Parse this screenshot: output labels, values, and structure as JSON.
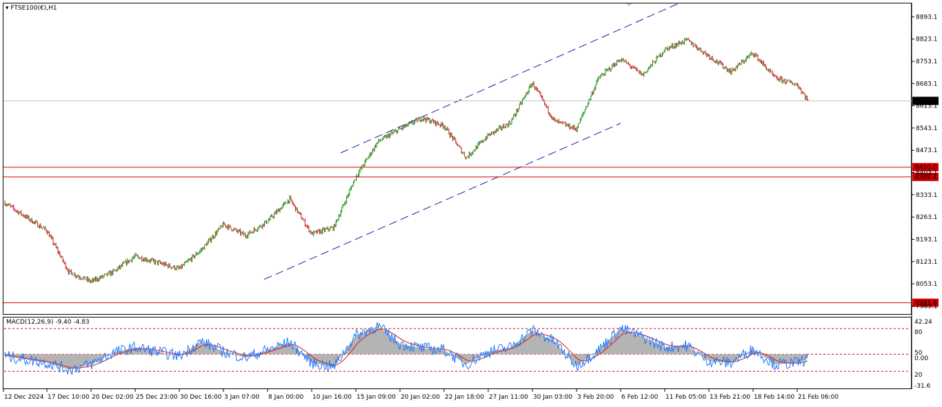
{
  "header": {
    "symbol_title": "FTSE100(€),H1",
    "indicator_title": "MACD(12,26,9) -9.40 -4.83"
  },
  "chart_data": [
    {
      "type": "candlestick",
      "title": "FTSE100(€),H1",
      "ylim": [
        7958,
        8935
      ],
      "price_ticks": [
        "8893.1",
        "8823.1",
        "8753.1",
        "8683.1",
        "8613.1",
        "8543.1",
        "8473.1",
        "8403.1",
        "8333.1",
        "8263.1",
        "8193.1",
        "8123.1",
        "8053.1",
        "7983.1"
      ],
      "time_labels": [
        "12 Dec 2024",
        "17 Dec 10:00",
        "20 Dec 02:00",
        "25 Dec 23:00",
        "30 Dec 16:00",
        "3 Jan 07:00",
        "8 Jan 00:00",
        "10 Jan 16:00",
        "15 Jan 09:00",
        "20 Jan 02:00",
        "22 Jan 18:00",
        "27 Jan 11:00",
        "30 Jan 03:00",
        "3 Feb 20:00",
        "6 Feb 12:00",
        "11 Feb 05:00",
        "13 Feb 21:00",
        "18 Feb 14:00",
        "21 Feb 06:00"
      ],
      "current_price": "8628.4",
      "horizontal_levels": [
        "8420.0",
        "8389.4",
        "7993.6"
      ],
      "level_color": "#d40000",
      "bull_color": "#0a8a0a",
      "bear_color": "#c81414",
      "channel_color": "#1a1aa8",
      "channel_lines": [
        {
          "x_start": "15 Jan 09:00",
          "x_end": "11 Feb 05:00",
          "price_start": 8465,
          "price_end": 8935
        },
        {
          "x_start": "8 Jan 00:00",
          "x_end": "6 Feb 12:00",
          "price_start": 8067,
          "price_end": 8558
        }
      ],
      "close_path": [
        {
          "x": "12 Dec 2024",
          "price": 8310
        },
        {
          "x": "17 Dec 10:00",
          "price": 8220
        },
        {
          "x": "17 Dec 10:00",
          "price": 8090
        },
        {
          "x": "20 Dec 02:00",
          "price": 8060
        },
        {
          "x": "20 Dec 02:00",
          "price": 8090
        },
        {
          "x": "25 Dec 23:00",
          "price": 8140
        },
        {
          "x": "30 Dec 16:00",
          "price": 8100
        },
        {
          "x": "30 Dec 16:00",
          "price": 8160
        },
        {
          "x": "3 Jan 07:00",
          "price": 8240
        },
        {
          "x": "3 Jan 07:00",
          "price": 8205
        },
        {
          "x": "8 Jan 00:00",
          "price": 8250
        },
        {
          "x": "8 Jan 00:00",
          "price": 8320
        },
        {
          "x": "10 Jan 16:00",
          "price": 8210
        },
        {
          "x": "10 Jan 16:00",
          "price": 8230
        },
        {
          "x": "15 Jan 09:00",
          "price": 8390
        },
        {
          "x": "15 Jan 09:00",
          "price": 8500
        },
        {
          "x": "20 Jan 02:00",
          "price": 8540
        },
        {
          "x": "20 Jan 02:00",
          "price": 8575
        },
        {
          "x": "22 Jan 18:00",
          "price": 8550
        },
        {
          "x": "22 Jan 18:00",
          "price": 8450
        },
        {
          "x": "27 Jan 11:00",
          "price": 8520
        },
        {
          "x": "27 Jan 11:00",
          "price": 8560
        },
        {
          "x": "30 Jan 03:00",
          "price": 8685
        },
        {
          "x": "30 Jan 03:00",
          "price": 8565
        },
        {
          "x": "3 Feb 20:00",
          "price": 8540
        },
        {
          "x": "3 Feb 20:00",
          "price": 8700
        },
        {
          "x": "6 Feb 12:00",
          "price": 8760
        },
        {
          "x": "6 Feb 12:00",
          "price": 8710
        },
        {
          "x": "11 Feb 05:00",
          "price": 8790
        },
        {
          "x": "11 Feb 05:00",
          "price": 8820
        },
        {
          "x": "13 Feb 21:00",
          "price": 8770
        },
        {
          "x": "13 Feb 21:00",
          "price": 8720
        },
        {
          "x": "18 Feb 14:00",
          "price": 8780
        },
        {
          "x": "18 Feb 14:00",
          "price": 8700
        },
        {
          "x": "21 Feb 06:00",
          "price": 8680
        },
        {
          "x": "21 Feb 06:00",
          "price": 8628.4
        }
      ]
    },
    {
      "type": "oscillator",
      "title": "MACD(12,26,9) -9.40 -4.83",
      "ylim": [
        -40,
        43
      ],
      "ticks": [
        "42.24",
        "80",
        "50",
        "0.00",
        "20",
        "-31.6"
      ],
      "levels": [
        30,
        0,
        -20
      ],
      "level_color": "#d40000",
      "hist_color": "#b4b4b4",
      "main_color": "#1e78ff",
      "signal_color": "#dc1414",
      "histogram_path": [
        {
          "x": "12 Dec 2024",
          "value": -2
        },
        {
          "x": "17 Dec 10:00",
          "value": -10
        },
        {
          "x": "17 Dec 10:00",
          "value": -18
        },
        {
          "x": "20 Dec 02:00",
          "value": -12
        },
        {
          "x": "20 Dec 02:00",
          "value": 2
        },
        {
          "x": "25 Dec 23:00",
          "value": 8
        },
        {
          "x": "30 Dec 16:00",
          "value": -2
        },
        {
          "x": "30 Dec 16:00",
          "value": 15
        },
        {
          "x": "3 Jan 07:00",
          "value": 3
        },
        {
          "x": "3 Jan 07:00",
          "value": -4
        },
        {
          "x": "8 Jan 00:00",
          "value": 5
        },
        {
          "x": "8 Jan 00:00",
          "value": 14
        },
        {
          "x": "10 Jan 16:00",
          "value": -10
        },
        {
          "x": "10 Jan 16:00",
          "value": -15
        },
        {
          "x": "15 Jan 09:00",
          "value": 22
        },
        {
          "x": "15 Jan 09:00",
          "value": 33
        },
        {
          "x": "20 Jan 02:00",
          "value": 12
        },
        {
          "x": "20 Jan 02:00",
          "value": 7
        },
        {
          "x": "22 Jan 18:00",
          "value": 5
        },
        {
          "x": "22 Jan 18:00",
          "value": -12
        },
        {
          "x": "27 Jan 11:00",
          "value": 3
        },
        {
          "x": "27 Jan 11:00",
          "value": 8
        },
        {
          "x": "30 Jan 03:00",
          "value": 28
        },
        {
          "x": "30 Jan 03:00",
          "value": 15
        },
        {
          "x": "3 Feb 20:00",
          "value": -14
        },
        {
          "x": "3 Feb 20:00",
          "value": 5
        },
        {
          "x": "6 Feb 12:00",
          "value": 30
        },
        {
          "x": "6 Feb 12:00",
          "value": 20
        },
        {
          "x": "11 Feb 05:00",
          "value": 8
        },
        {
          "x": "11 Feb 05:00",
          "value": 10
        },
        {
          "x": "13 Feb 21:00",
          "value": -8
        },
        {
          "x": "13 Feb 21:00",
          "value": -10
        },
        {
          "x": "18 Feb 14:00",
          "value": 6
        },
        {
          "x": "18 Feb 14:00",
          "value": -12
        },
        {
          "x": "21 Feb 06:00",
          "value": -10
        },
        {
          "x": "21 Feb 06:00",
          "value": -5
        }
      ]
    }
  ]
}
